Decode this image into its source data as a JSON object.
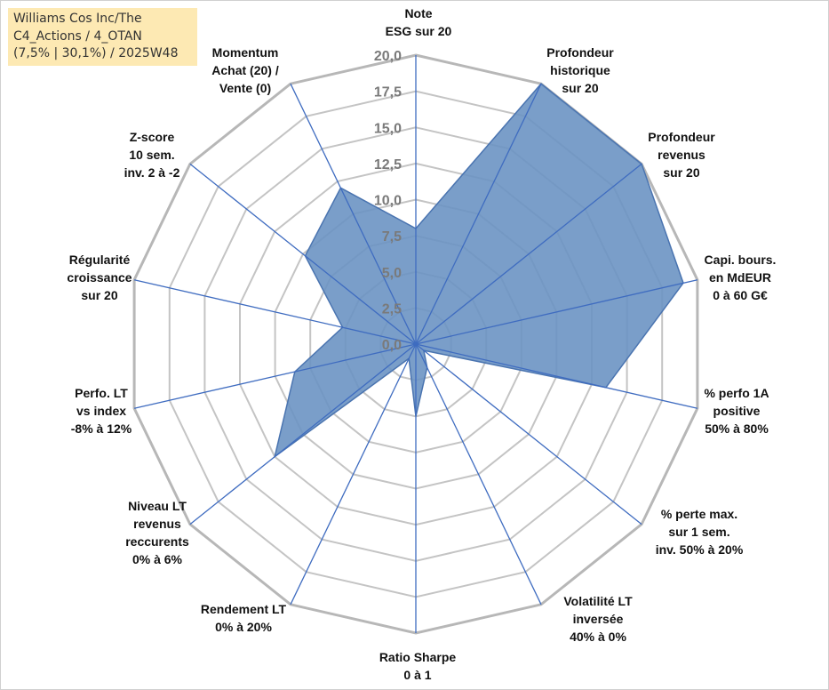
{
  "title_lines": [
    "Williams Cos Inc/The",
    "C4_Actions / 4_OTAN",
    "(7,5% | 30,1%) / 2025W48"
  ],
  "colors": {
    "fill": "#6b93c3",
    "stroke": "#4a74b0",
    "spoke": "#3f6cc0",
    "grid": "#c4c4c4",
    "grid_outer": "#b7b7b7"
  },
  "chart_data": {
    "type": "radar",
    "r_range": [
      0,
      20
    ],
    "tick_labels": [
      "0,0",
      "2,5",
      "5,0",
      "7,5",
      "10,0",
      "12,5",
      "15,0",
      "17,5",
      "20,0"
    ],
    "tick_values": [
      0,
      2.5,
      5,
      7.5,
      10,
      12.5,
      15,
      17.5,
      20
    ],
    "axes": [
      {
        "lines": [
          "Note",
          "ESG sur 20"
        ],
        "value": 8
      },
      {
        "lines": [
          "Profondeur",
          "historique",
          "sur 20"
        ],
        "value": 20
      },
      {
        "lines": [
          "Profondeur",
          "revenus",
          "sur 20"
        ],
        "value": 20
      },
      {
        "lines": [
          "Capi. bours.",
          "en MdEUR",
          "0 à 60 G€"
        ],
        "value": 19
      },
      {
        "lines": [
          "% perfo 1A",
          "positive",
          "50% à 80%"
        ],
        "value": 13.5
      },
      {
        "lines": [
          "% perte max.",
          "sur 1 sem.",
          "inv. 50% à 20%"
        ],
        "value": 0.7
      },
      {
        "lines": [
          "Volatilité LT",
          "inversée",
          "40% à 0%"
        ],
        "value": 1.8
      },
      {
        "lines": [
          "Ratio Sharpe",
          "0 à 1"
        ],
        "value": 5
      },
      {
        "lines": [
          "Rendement LT",
          "0% à 20%"
        ],
        "value": 1.1
      },
      {
        "lines": [
          "Niveau LT",
          "revenus",
          "reccurents",
          "0% à 6%"
        ],
        "value": 12.5
      },
      {
        "lines": [
          "Perfo. LT",
          "vs index",
          "-8% à 12%"
        ],
        "value": 8.6
      },
      {
        "lines": [
          "Régularité",
          "croissance",
          "sur 20"
        ],
        "value": 5.2
      },
      {
        "lines": [
          "Z-score",
          "10 sem.",
          "inv. 2 à -2"
        ],
        "value": 9.8
      },
      {
        "lines": [
          "Momentum",
          "Achat (20) /",
          "Vente (0)"
        ],
        "value": 12
      }
    ]
  }
}
